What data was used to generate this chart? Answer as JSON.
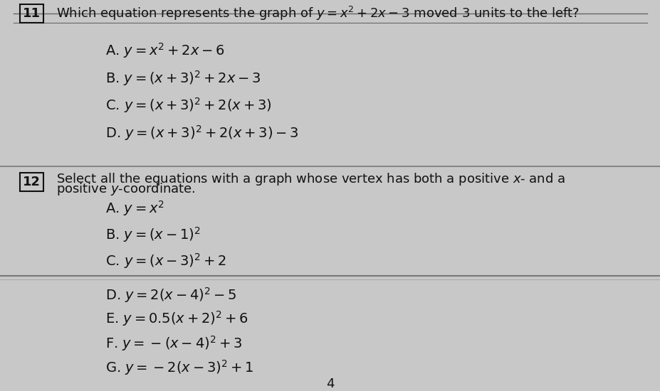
{
  "background_color": "#c8c8c8",
  "content_bg": "#d4d4d4",
  "text_color": "#111111",
  "box_color": "#111111",
  "line_color": "#888888",
  "divider_color": "#888888",
  "q11_number": "11",
  "q11_question": "Which equation represents the graph of $y=x^2+2x-3$ moved 3 units to the left?",
  "q11_options": [
    "A. $y=x^2+2x-6$",
    "B. $y=(x+3)^2+2x-3$",
    "C. $y=(x+3)^2+2(x+3)$",
    "D. $y=(x+3)^2+2(x+3)-3$"
  ],
  "q12_number": "12",
  "q12_line1": "Select all the equations with a graph whose vertex has both a positive $x$- and a",
  "q12_line2": "positive $y$-coordinate.",
  "q12_options": [
    "A. $y=x^2$",
    "B. $y=(x-1)^2$",
    "C. $y=(x-3)^2+2$",
    "D. $y=2(x-4)^2-5$",
    "E. $y=0.5(x+2)^2+6$",
    "F. $y=-(x-4)^2+3$",
    "G. $y=-2(x-3)^2+1$"
  ],
  "footer_number": "4",
  "font_size_question": 13,
  "font_size_option": 14,
  "font_size_header": 13,
  "indent_option": 0.16,
  "indent_question": 0.085
}
